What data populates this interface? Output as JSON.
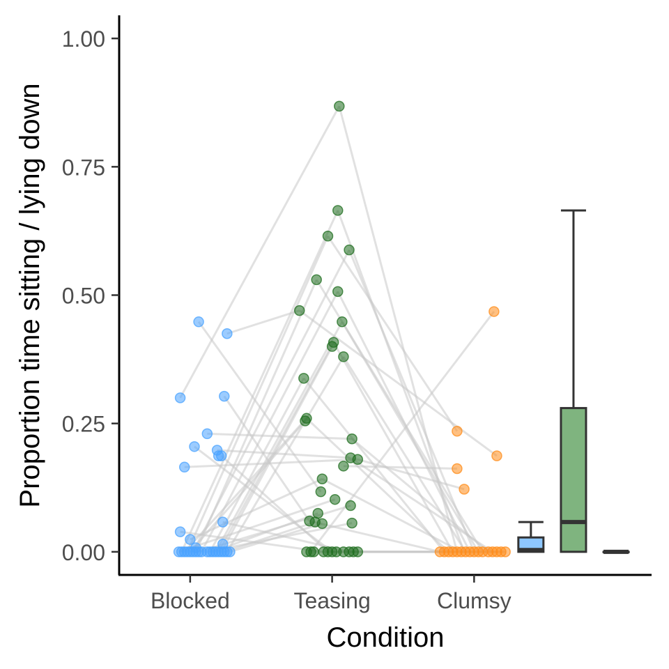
{
  "chart_data": {
    "type": "scatter",
    "xlabel": "Condition",
    "ylabel": "Proportion time sitting / lying down",
    "categories": [
      "Blocked",
      "Teasing",
      "Clumsy"
    ],
    "ylim": [
      -0.045,
      1.045
    ],
    "yticks": [
      0,
      0.25,
      0.5,
      0.75,
      1
    ],
    "ytick_labels": [
      "0.00",
      "0.25",
      "0.50",
      "0.75",
      "1.00"
    ],
    "grid": false,
    "legend": "none",
    "colors": {
      "Blocked": "#4aa3ff",
      "Teasing": "#1f6e1f",
      "Clumsy": "#ff8c1a",
      "lines": "#c8c8c8",
      "box_Blocked": "#8ec7ff",
      "box_Teasing": "#7fb47f",
      "box_Clumsy": "#ffc27f"
    },
    "series": [
      {
        "name": "Blocked",
        "points": [
          {
            "x": 0.93,
            "y": 0.3
          },
          {
            "x": 0.96,
            "y": 0.165
          },
          {
            "x": 1.03,
            "y": 0.205
          },
          {
            "x": 1.06,
            "y": 0.448
          },
          {
            "x": 1.12,
            "y": 0.23
          },
          {
            "x": 1.19,
            "y": 0.198
          },
          {
            "x": 1.2,
            "y": 0.187
          },
          {
            "x": 1.22,
            "y": 0.187
          },
          {
            "x": 1.24,
            "y": 0.303
          },
          {
            "x": 1.26,
            "y": 0.425
          },
          {
            "x": 1.23,
            "y": 0.058
          },
          {
            "x": 0.93,
            "y": 0.039
          },
          {
            "x": 1.0,
            "y": 0.024
          },
          {
            "x": 1.04,
            "y": 0.008
          },
          {
            "x": 1.23,
            "y": 0.015
          },
          {
            "x": 0.92,
            "y": 0
          },
          {
            "x": 0.94,
            "y": 0
          },
          {
            "x": 0.96,
            "y": 0
          },
          {
            "x": 0.98,
            "y": 0
          },
          {
            "x": 1.0,
            "y": 0
          },
          {
            "x": 1.02,
            "y": 0
          },
          {
            "x": 1.04,
            "y": 0
          },
          {
            "x": 1.06,
            "y": 0
          },
          {
            "x": 1.08,
            "y": 0
          },
          {
            "x": 1.12,
            "y": 0
          },
          {
            "x": 1.14,
            "y": 0
          },
          {
            "x": 1.16,
            "y": 0
          },
          {
            "x": 1.18,
            "y": 0
          },
          {
            "x": 1.2,
            "y": 0
          },
          {
            "x": 1.22,
            "y": 0
          },
          {
            "x": 1.24,
            "y": 0
          },
          {
            "x": 1.26,
            "y": 0
          },
          {
            "x": 1.28,
            "y": 0
          }
        ]
      },
      {
        "name": "Teasing",
        "points": [
          {
            "x": 2.05,
            "y": 0.868
          },
          {
            "x": 2.04,
            "y": 0.665
          },
          {
            "x": 1.97,
            "y": 0.615
          },
          {
            "x": 2.12,
            "y": 0.588
          },
          {
            "x": 1.89,
            "y": 0.53
          },
          {
            "x": 2.04,
            "y": 0.507
          },
          {
            "x": 1.77,
            "y": 0.47
          },
          {
            "x": 2.07,
            "y": 0.448
          },
          {
            "x": 2.01,
            "y": 0.408
          },
          {
            "x": 2.0,
            "y": 0.4
          },
          {
            "x": 2.08,
            "y": 0.38
          },
          {
            "x": 1.8,
            "y": 0.338
          },
          {
            "x": 1.82,
            "y": 0.26
          },
          {
            "x": 1.81,
            "y": 0.255
          },
          {
            "x": 2.14,
            "y": 0.22
          },
          {
            "x": 2.13,
            "y": 0.183
          },
          {
            "x": 2.18,
            "y": 0.18
          },
          {
            "x": 2.08,
            "y": 0.167
          },
          {
            "x": 1.93,
            "y": 0.142
          },
          {
            "x": 1.92,
            "y": 0.117
          },
          {
            "x": 2.02,
            "y": 0.102
          },
          {
            "x": 2.13,
            "y": 0.09
          },
          {
            "x": 1.9,
            "y": 0.075
          },
          {
            "x": 1.84,
            "y": 0.06
          },
          {
            "x": 1.88,
            "y": 0.058
          },
          {
            "x": 1.93,
            "y": 0.055
          },
          {
            "x": 2.14,
            "y": 0.056
          },
          {
            "x": 1.82,
            "y": 0
          },
          {
            "x": 1.85,
            "y": 0
          },
          {
            "x": 1.87,
            "y": 0
          },
          {
            "x": 1.94,
            "y": 0
          },
          {
            "x": 1.97,
            "y": 0
          },
          {
            "x": 2.0,
            "y": 0
          },
          {
            "x": 2.03,
            "y": 0
          },
          {
            "x": 2.08,
            "y": 0
          },
          {
            "x": 2.12,
            "y": 0
          },
          {
            "x": 2.15,
            "y": 0
          },
          {
            "x": 2.18,
            "y": 0
          }
        ]
      },
      {
        "name": "Clumsy",
        "points": [
          {
            "x": 3.14,
            "y": 0.468
          },
          {
            "x": 2.88,
            "y": 0.235
          },
          {
            "x": 3.16,
            "y": 0.187
          },
          {
            "x": 2.88,
            "y": 0.162
          },
          {
            "x": 2.93,
            "y": 0.122
          },
          {
            "x": 2.76,
            "y": 0
          },
          {
            "x": 2.79,
            "y": 0
          },
          {
            "x": 2.82,
            "y": 0
          },
          {
            "x": 2.85,
            "y": 0
          },
          {
            "x": 2.88,
            "y": 0
          },
          {
            "x": 2.91,
            "y": 0
          },
          {
            "x": 2.94,
            "y": 0
          },
          {
            "x": 2.97,
            "y": 0
          },
          {
            "x": 3.0,
            "y": 0
          },
          {
            "x": 3.03,
            "y": 0
          },
          {
            "x": 3.06,
            "y": 0
          },
          {
            "x": 3.1,
            "y": 0
          },
          {
            "x": 3.13,
            "y": 0
          },
          {
            "x": 3.16,
            "y": 0
          },
          {
            "x": 3.19,
            "y": 0
          },
          {
            "x": 3.22,
            "y": 0
          }
        ]
      }
    ],
    "paired_lines": [
      [
        [
          1.26,
          0.425
        ],
        [
          1.77,
          0.47
        ]
      ],
      [
        [
          1.06,
          0.448
        ],
        [
          1.92,
          0.117
        ]
      ],
      [
        [
          0.93,
          0.3
        ],
        [
          2.05,
          0.868
        ]
      ],
      [
        [
          1.24,
          0.303
        ],
        [
          1.84,
          0.06
        ]
      ],
      [
        [
          1.12,
          0.23
        ],
        [
          2.14,
          0.22
        ]
      ],
      [
        [
          0.96,
          0.165
        ],
        [
          2.18,
          0.18
        ]
      ],
      [
        [
          1.03,
          0.205
        ],
        [
          2.0,
          0
        ]
      ],
      [
        [
          1.22,
          0.187
        ],
        [
          1.97,
          0
        ]
      ],
      [
        [
          1.19,
          0.198
        ],
        [
          2.13,
          0.183
        ]
      ],
      [
        [
          1.23,
          0.058
        ],
        [
          2.12,
          0
        ]
      ],
      [
        [
          0.93,
          0.039
        ],
        [
          1.94,
          0
        ]
      ],
      [
        [
          1.0,
          0.024
        ],
        [
          1.93,
          0.142
        ]
      ],
      [
        [
          0.94,
          0
        ],
        [
          2.04,
          0.665
        ]
      ],
      [
        [
          0.98,
          0
        ],
        [
          1.97,
          0.615
        ]
      ],
      [
        [
          1.02,
          0
        ],
        [
          2.12,
          0.588
        ]
      ],
      [
        [
          1.04,
          0
        ],
        [
          1.89,
          0.53
        ]
      ],
      [
        [
          1.08,
          0
        ],
        [
          2.04,
          0.507
        ]
      ],
      [
        [
          1.14,
          0
        ],
        [
          1.8,
          0.338
        ]
      ],
      [
        [
          1.18,
          0
        ],
        [
          2.07,
          0.448
        ]
      ],
      [
        [
          1.2,
          0
        ],
        [
          2.01,
          0.408
        ]
      ],
      [
        [
          1.22,
          0
        ],
        [
          2.0,
          0.4
        ]
      ],
      [
        [
          1.26,
          0
        ],
        [
          2.08,
          0.38
        ]
      ],
      [
        [
          0.96,
          0
        ],
        [
          1.82,
          0.26
        ]
      ],
      [
        [
          1.0,
          0
        ],
        [
          1.81,
          0.255
        ]
      ],
      [
        [
          1.06,
          0
        ],
        [
          2.13,
          0.09
        ]
      ],
      [
        [
          1.16,
          0
        ],
        [
          1.9,
          0.075
        ]
      ],
      [
        [
          1.24,
          0
        ],
        [
          1.88,
          0.058
        ]
      ],
      [
        [
          1.28,
          0
        ],
        [
          1.93,
          0.055
        ]
      ],
      [
        [
          0.92,
          0
        ],
        [
          2.02,
          0.102
        ]
      ],
      [
        [
          1.12,
          0
        ],
        [
          2.14,
          0.056
        ]
      ],
      [
        [
          1.77,
          0.47
        ],
        [
          3.16,
          0.187
        ]
      ],
      [
        [
          2.05,
          0.868
        ],
        [
          2.88,
          0
        ]
      ],
      [
        [
          2.04,
          0.665
        ],
        [
          2.93,
          0
        ]
      ],
      [
        [
          1.97,
          0.615
        ],
        [
          2.88,
          0.235
        ]
      ],
      [
        [
          2.12,
          0.588
        ],
        [
          3.0,
          0
        ]
      ],
      [
        [
          1.89,
          0.53
        ],
        [
          3.06,
          0
        ]
      ],
      [
        [
          2.04,
          0.507
        ],
        [
          2.97,
          0
        ]
      ],
      [
        [
          2.07,
          0.448
        ],
        [
          3.03,
          0
        ]
      ],
      [
        [
          2.01,
          0.408
        ],
        [
          2.85,
          0
        ]
      ],
      [
        [
          2.08,
          0.38
        ],
        [
          2.94,
          0
        ]
      ],
      [
        [
          1.8,
          0.338
        ],
        [
          2.79,
          0
        ]
      ],
      [
        [
          2.14,
          0.22
        ],
        [
          3.1,
          0
        ]
      ],
      [
        [
          2.18,
          0.18
        ],
        [
          2.93,
          0.122
        ]
      ],
      [
        [
          2.08,
          0.167
        ],
        [
          2.88,
          0.162
        ]
      ],
      [
        [
          1.93,
          0.142
        ],
        [
          2.91,
          0
        ]
      ],
      [
        [
          2.13,
          0.183
        ],
        [
          3.13,
          0
        ]
      ],
      [
        [
          1.82,
          0.26
        ],
        [
          2.82,
          0
        ]
      ],
      [
        [
          1.84,
          0.06
        ],
        [
          2.76,
          0
        ]
      ],
      [
        [
          1.85,
          0
        ],
        [
          3.14,
          0.468
        ]
      ],
      [
        [
          2.0,
          0
        ],
        [
          3.0,
          0
        ]
      ],
      [
        [
          1.97,
          0
        ],
        [
          3.16,
          0
        ]
      ],
      [
        [
          2.15,
          0
        ],
        [
          3.19,
          0
        ]
      ],
      [
        [
          1.87,
          0
        ],
        [
          2.97,
          0
        ]
      ],
      [
        [
          2.18,
          0
        ],
        [
          3.22,
          0
        ]
      ]
    ],
    "boxplots": [
      {
        "name": "Blocked",
        "x": 3.4,
        "min": 0,
        "q1": 0,
        "median": 0.0035,
        "q3": 0.028,
        "max": 0.058
      },
      {
        "name": "Teasing",
        "x": 3.7,
        "min": 0,
        "q1": 0,
        "median": 0.058,
        "q3": 0.28,
        "max": 0.665
      },
      {
        "name": "Clumsy",
        "x": 4.0,
        "min": 0,
        "q1": 0,
        "median": 0,
        "q3": 0,
        "max": 0
      }
    ]
  }
}
